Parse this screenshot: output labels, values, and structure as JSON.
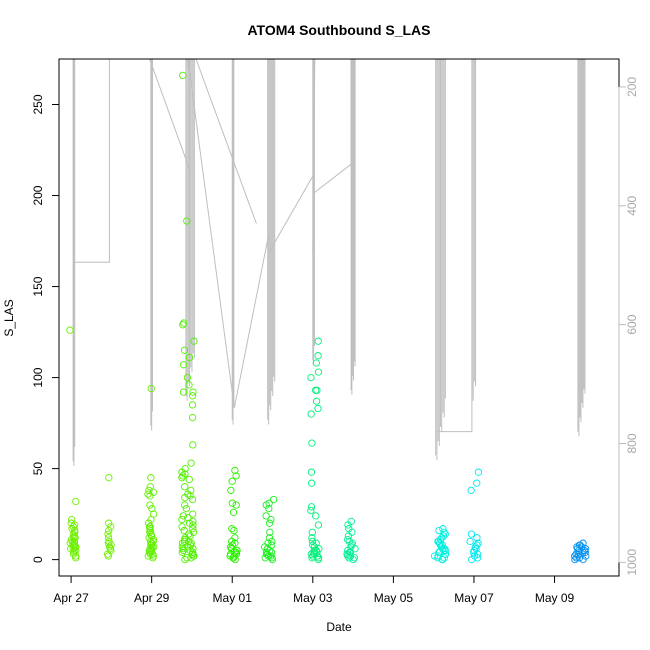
{
  "chart_data": {
    "type": "scatter",
    "title": "ATOM4 Southbound S_LAS",
    "xlabel": "Date",
    "ylabel": "S_LAS",
    "xlim": [
      -0.3,
      13.6
    ],
    "ylim": [
      -9,
      275
    ],
    "x_unit": "days since Apr 27 00:00",
    "x_ticks": [
      {
        "value": 0,
        "label": "Apr 27"
      },
      {
        "value": 2,
        "label": "Apr 29"
      },
      {
        "value": 4,
        "label": "May 01"
      },
      {
        "value": 6,
        "label": "May 03"
      },
      {
        "value": 8,
        "label": "May 05"
      },
      {
        "value": 10,
        "label": "May 07"
      },
      {
        "value": 12,
        "label": "May 09"
      }
    ],
    "y_ticks": [
      0,
      50,
      100,
      150,
      200,
      250
    ],
    "right_axis": {
      "description": "secondary (reversed) axis for the gray trace",
      "range": [
        1023,
        153
      ],
      "ticks": [
        200,
        400,
        600,
        800,
        1000
      ],
      "color": "#bebebe"
    },
    "marker": "open-circle",
    "color_scale": "color encodes time (yellow-green to blue)",
    "clusters": [
      {
        "x": 0.05,
        "spread": 0.08,
        "color": "#6ef000",
        "values": [
          126,
          32,
          22,
          20,
          19,
          18,
          17,
          16,
          15,
          14,
          13,
          12,
          12,
          11,
          10,
          10,
          9,
          9,
          8,
          8,
          7,
          7,
          6,
          6,
          5,
          5,
          4,
          3,
          2,
          1
        ]
      },
      {
        "x": 0.95,
        "spread": 0.05,
        "color": "#6ff000",
        "values": [
          45,
          20,
          18,
          16,
          14,
          12,
          10,
          9,
          8,
          7,
          6,
          5,
          3,
          2
        ]
      },
      {
        "x": 1.98,
        "spread": 0.08,
        "color": "#62f000",
        "values": [
          94,
          45,
          40,
          38,
          37,
          36,
          35,
          30,
          28,
          25,
          22,
          20,
          18,
          18,
          17,
          16,
          15,
          14,
          13,
          12,
          11,
          10,
          10,
          9,
          9,
          8,
          8,
          7,
          7,
          6,
          6,
          5,
          5,
          4,
          4,
          3,
          3,
          2,
          2,
          1
        ]
      },
      {
        "x": 2.9,
        "spread": 0.15,
        "color": "#52f000",
        "values": [
          266,
          186,
          130,
          129,
          120,
          115,
          111,
          107,
          100,
          96,
          92,
          92,
          90,
          85,
          78,
          63,
          53,
          50,
          48,
          47,
          46,
          45,
          44,
          40,
          38,
          36,
          35,
          34,
          33,
          30,
          28,
          25,
          24,
          23,
          22,
          21,
          20,
          19,
          18,
          17,
          16,
          15,
          14,
          13,
          12,
          11,
          10,
          10,
          9,
          9,
          8,
          8,
          7,
          7,
          6,
          6,
          5,
          5,
          4,
          4,
          3,
          3,
          2,
          2,
          1,
          1,
          0
        ]
      },
      {
        "x": 4.02,
        "spread": 0.1,
        "color": "#2af000",
        "values": [
          49,
          46,
          43,
          38,
          31,
          30,
          26,
          17,
          16,
          12,
          10,
          9,
          8,
          7,
          6,
          5,
          5,
          4,
          4,
          3,
          3,
          2,
          2,
          1,
          1,
          0
        ]
      },
      {
        "x": 4.92,
        "spread": 0.12,
        "color": "#1af020",
        "values": [
          33,
          31,
          30,
          28,
          24,
          22,
          20,
          15,
          12,
          10,
          9,
          8,
          7,
          6,
          5,
          4,
          4,
          3,
          3,
          2,
          2,
          1,
          1,
          0
        ]
      },
      {
        "x": 6.05,
        "spread": 0.1,
        "color": "#00f07a",
        "values": [
          120,
          112,
          108,
          103,
          100,
          93,
          93,
          87,
          83,
          80,
          64,
          48,
          42,
          29,
          27,
          24,
          19,
          15,
          12,
          10,
          9,
          8,
          7,
          6,
          5,
          5,
          4,
          4,
          3,
          3,
          2,
          2,
          1,
          1,
          0
        ]
      },
      {
        "x": 6.95,
        "spread": 0.1,
        "color": "#00f095",
        "values": [
          21,
          19,
          17,
          15,
          13,
          11,
          10,
          9,
          8,
          7,
          6,
          5,
          4,
          4,
          3,
          3,
          2,
          2,
          1,
          1,
          0
        ]
      },
      {
        "x": 9.15,
        "spread": 0.15,
        "color": "#00f0e0",
        "values": [
          17,
          16,
          15,
          14,
          13,
          12,
          11,
          10,
          10,
          9,
          9,
          8,
          8,
          7,
          7,
          6,
          6,
          5,
          5,
          4,
          4,
          3,
          3,
          2,
          2,
          1,
          1,
          0,
          0
        ]
      },
      {
        "x": 10.0,
        "spread": 0.12,
        "color": "#00e8f0",
        "values": [
          48,
          42,
          38,
          14,
          12,
          10,
          9,
          8,
          7,
          6,
          5,
          4,
          3,
          2,
          1,
          0
        ]
      },
      {
        "x": 12.65,
        "spread": 0.15,
        "color": "#0090f0",
        "values": [
          9,
          8,
          8,
          7,
          7,
          6,
          6,
          5,
          5,
          4,
          4,
          3,
          3,
          2,
          2,
          1,
          1,
          0,
          0
        ]
      }
    ]
  }
}
